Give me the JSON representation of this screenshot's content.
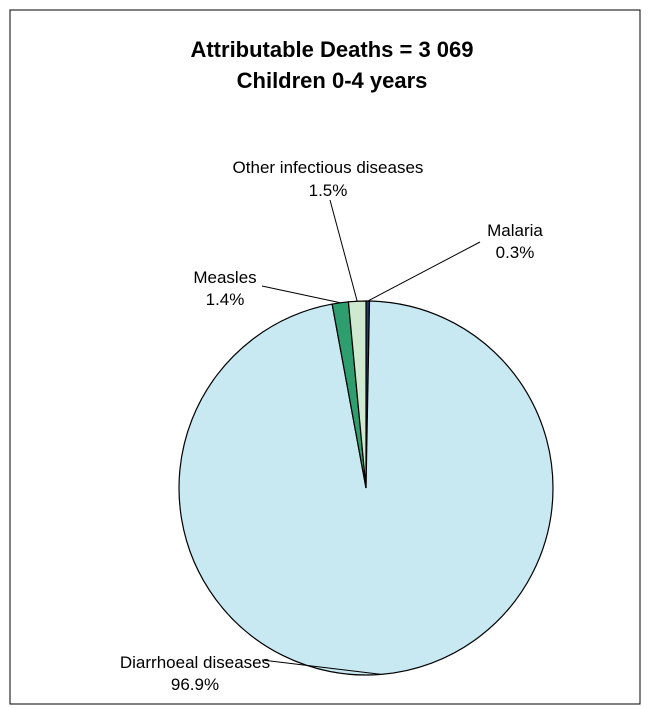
{
  "chart_data": {
    "type": "pie",
    "title": "Attributable Deaths = 3 069",
    "subtitle": "Children 0-4 years",
    "slices": [
      {
        "label": "Malaria",
        "value": 0.3,
        "value_label": "0.3%",
        "color": "#1f3b73"
      },
      {
        "label": "Diarrhoeal diseases",
        "value": 96.9,
        "value_label": "96.9%",
        "color": "#c8e8f2"
      },
      {
        "label": "Measles",
        "value": 1.4,
        "value_label": "1.4%",
        "color": "#2e9e6e"
      },
      {
        "label": "Other infectious diseases",
        "value": 1.5,
        "value_label": "1.5%",
        "color": "#cfe8d0"
      }
    ]
  }
}
